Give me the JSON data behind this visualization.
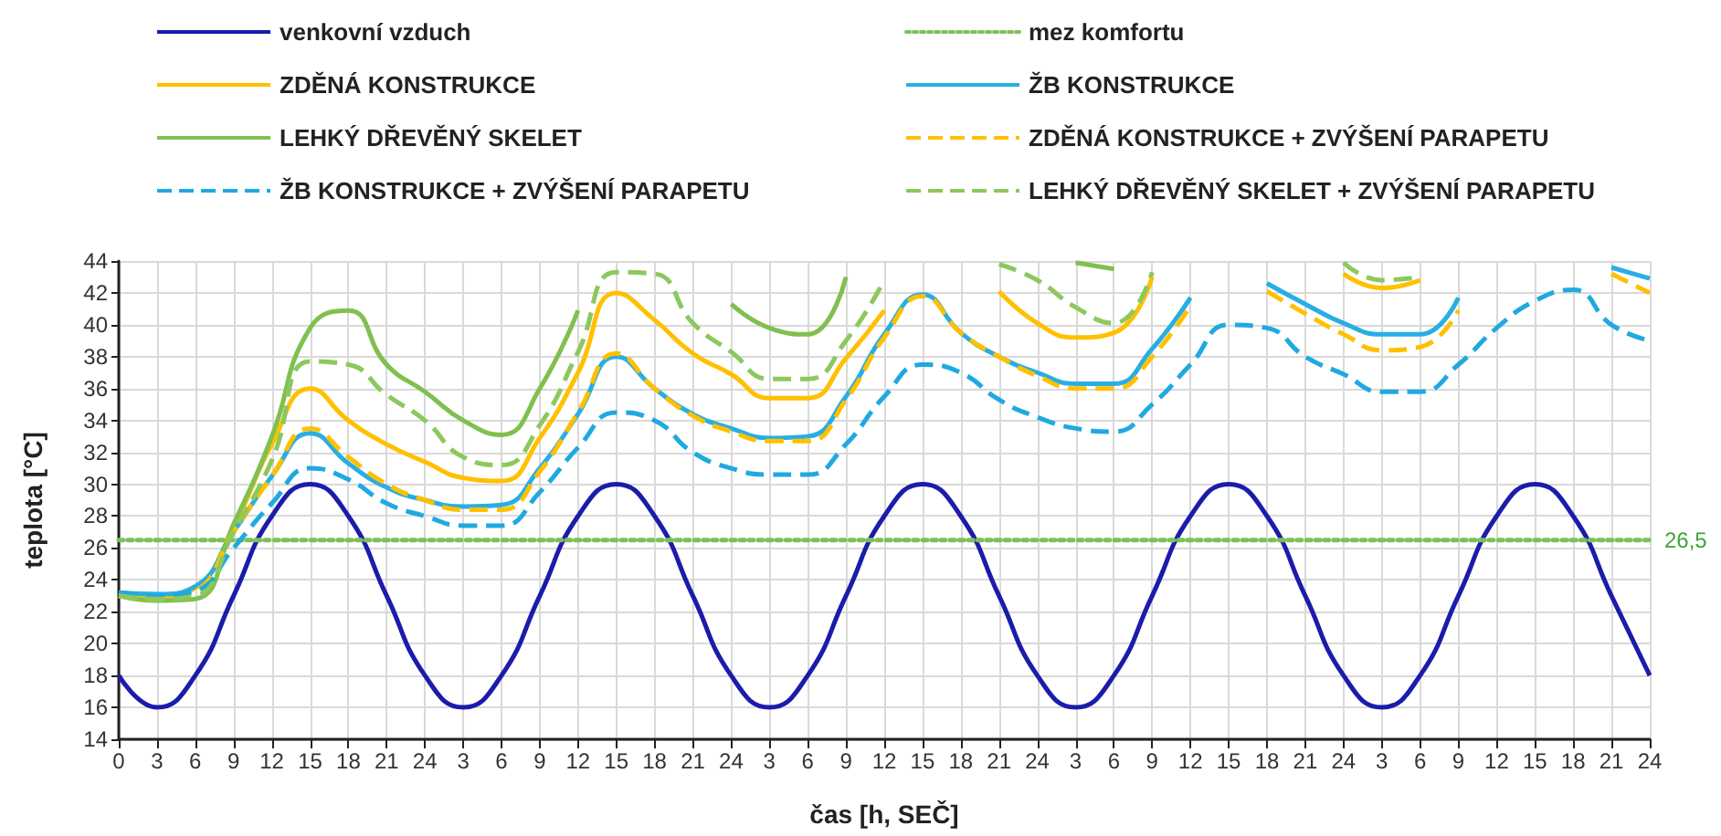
{
  "chart_data": {
    "type": "line",
    "xlabel": "čas [h, SEČ]",
    "ylabel": "teplota [°C]",
    "categories": [
      "0",
      "3",
      "6",
      "9",
      "12",
      "15",
      "18",
      "21",
      "24",
      "3",
      "6",
      "9",
      "12",
      "15",
      "18",
      "21",
      "24",
      "3",
      "6",
      "9",
      "12",
      "15",
      "18",
      "21",
      "24",
      "3",
      "6",
      "9",
      "12",
      "15",
      "18",
      "21",
      "24",
      "3",
      "6",
      "9",
      "12",
      "15",
      "18",
      "21",
      "24"
    ],
    "ylim": [
      14,
      44
    ],
    "yticks": [
      14,
      16,
      18,
      20,
      22,
      24,
      26,
      28,
      30,
      32,
      34,
      36,
      38,
      40,
      42,
      44
    ],
    "grid": true,
    "legend": "top",
    "marker": "none",
    "series": [
      {
        "name": "venkovní vzduch",
        "color": "#1c1caa",
        "line_style": "solid",
        "values": [
          18,
          16,
          18,
          23,
          28,
          30,
          28,
          23,
          18,
          16,
          18,
          23,
          28,
          30,
          28,
          23,
          18,
          16,
          18,
          23,
          28,
          30,
          28,
          23,
          18,
          16,
          18,
          23,
          28,
          30,
          28,
          23,
          18,
          16,
          18,
          23,
          28,
          30,
          28,
          23,
          18
        ]
      },
      {
        "name": "mez komfortu",
        "color": "#7cc05a",
        "line_style": "dotted",
        "values": [
          26.5,
          26.5,
          26.5,
          26.5,
          26.5,
          26.5,
          26.5,
          26.5,
          26.5,
          26.5,
          26.5,
          26.5,
          26.5,
          26.5,
          26.5,
          26.5,
          26.5,
          26.5,
          26.5,
          26.5,
          26.5,
          26.5,
          26.5,
          26.5,
          26.5,
          26.5,
          26.5,
          26.5,
          26.5,
          26.5,
          26.5,
          26.5,
          26.5,
          26.5,
          26.5,
          26.5,
          26.5,
          26.5,
          26.5,
          26.5,
          26.5
        ],
        "value_labels": [
          null,
          null,
          null,
          null,
          null,
          null,
          null,
          null,
          null,
          null,
          null,
          null,
          null,
          null,
          null,
          null,
          null,
          null,
          null,
          null,
          null,
          null,
          null,
          null,
          null,
          null,
          null,
          null,
          null,
          null,
          null,
          null,
          null,
          null,
          null,
          null,
          null,
          null,
          null,
          null,
          "26,5"
        ]
      },
      {
        "name": "ZDĚNÁ KONSTRUKCE",
        "color": "#ffc000",
        "line_style": "solid",
        "values": [
          23,
          22.9,
          23.5,
          27.3,
          32.5,
          36,
          34,
          32.5,
          31.4,
          30.4,
          30.2,
          32.9,
          37,
          42,
          40.3,
          38.2,
          36.9,
          35.4,
          35.4,
          37.9,
          40.9,
          null,
          null,
          42.1,
          40.1,
          39.2,
          39.5,
          43,
          null,
          null,
          null,
          null,
          43.2,
          42.3,
          42.8,
          null,
          null,
          null,
          null,
          null,
          null
        ]
      },
      {
        "name": "ŽB KONSTRUKCE",
        "color": "#28aee3",
        "line_style": "solid",
        "values": [
          23.2,
          23.1,
          23.6,
          27,
          30.5,
          33.2,
          31.3,
          29.8,
          29,
          28.6,
          28.7,
          31,
          34.4,
          38,
          36,
          34.4,
          33.5,
          32.9,
          33,
          35.5,
          39.4,
          41.9,
          39.5,
          38,
          37,
          36.3,
          36.3,
          38.5,
          41.7,
          null,
          42.6,
          41.3,
          40.1,
          39.4,
          39.4,
          41.7,
          null,
          null,
          null,
          43.6,
          42.9
        ]
      },
      {
        "name": "LEHKÝ DŘEVĚNÝ SKELET",
        "color": "#80c050",
        "line_style": "solid",
        "values": [
          23,
          22.7,
          22.8,
          27.5,
          33,
          39.8,
          40.9,
          37.5,
          35.8,
          34,
          33.1,
          36,
          40.9,
          null,
          null,
          null,
          41.3,
          39.8,
          39.4,
          43,
          null,
          null,
          null,
          null,
          null,
          43.9,
          43.5,
          null,
          null,
          null,
          null,
          null,
          null,
          null,
          null,
          null,
          null,
          null,
          null,
          null,
          null
        ]
      },
      {
        "name": "ZDĚNÁ KONSTRUKCE + ZVÝŠENÍ PARAPETU",
        "color": "#ffc000",
        "line_style": "dashed",
        "values": [
          23,
          22.8,
          23.3,
          27,
          30.5,
          33.5,
          31.7,
          30,
          29,
          28.4,
          28.4,
          30.8,
          34.5,
          38.2,
          36,
          34.3,
          33.3,
          32.7,
          32.7,
          35.3,
          39.2,
          41.8,
          39.5,
          38,
          36.8,
          36,
          36,
          38,
          41.2,
          null,
          42.1,
          40.7,
          39.4,
          38.4,
          38.6,
          40.9,
          null,
          null,
          null,
          43.2,
          42
        ]
      },
      {
        "name": "ŽB KONSTRUKCE + ZVÝŠENÍ PARAPETU",
        "color": "#1fa9e0",
        "line_style": "dashed",
        "values": [
          23.2,
          23,
          23.3,
          26,
          28.8,
          31,
          30.3,
          28.8,
          28,
          27.4,
          27.4,
          29.5,
          32.3,
          34.5,
          34,
          32,
          31,
          30.6,
          30.6,
          32.5,
          35.5,
          37.5,
          37,
          35.3,
          34.2,
          33.5,
          33.3,
          35,
          37.5,
          40,
          39.8,
          38,
          36.9,
          35.8,
          35.8,
          37.5,
          39.8,
          41.5,
          42.2,
          40,
          39
        ]
      },
      {
        "name": "LEHKÝ DŘEVĚNÝ SKELET + ZVÝŠENÍ PARAPETU",
        "color": "#8cc85e",
        "line_style": "dashed",
        "values": [
          23,
          22.8,
          23,
          27,
          31.5,
          37.7,
          37.5,
          35.6,
          34,
          31.7,
          31.2,
          33.7,
          38.3,
          43.3,
          43.2,
          40.1,
          38.3,
          36.6,
          36.6,
          39,
          42.8,
          null,
          null,
          43.8,
          42.8,
          41.1,
          40.1,
          43.3,
          null,
          null,
          null,
          null,
          43.9,
          42.8,
          43,
          null,
          null,
          null,
          null,
          null,
          null
        ]
      }
    ]
  }
}
